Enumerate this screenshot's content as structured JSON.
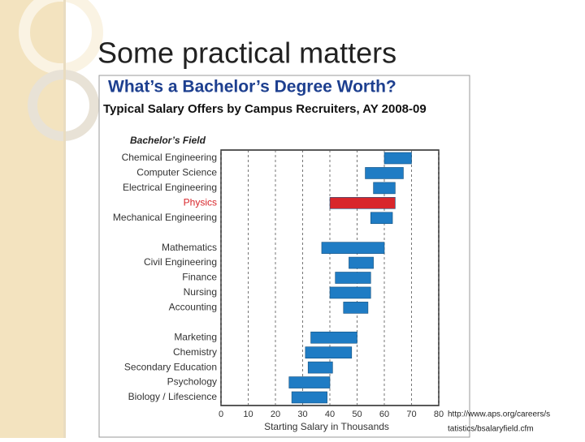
{
  "slide_title": "Some practical matters",
  "source": [
    "http://www.aps.org/careers/s",
    "tatistics/bsalaryfield.cfm"
  ],
  "chart_data": {
    "type": "range-bar",
    "title": "What’s a Bachelor’s Degree Worth?",
    "subtitle": "Typical Salary Offers by Campus Recruiters, AY 2008-09",
    "y_label": "Bachelor’s Field",
    "x_label": "Starting Salary in Thousands",
    "categories": [
      "Chemical Engineering",
      "Computer Science",
      "Electrical Engineering",
      "Physics",
      "Mechanical Engineering",
      null,
      "Mathematics",
      "Civil Engineering",
      "Finance",
      "Nursing",
      "Accounting",
      null,
      "Marketing",
      "Chemistry",
      "Secondary Education",
      "Psychology",
      "Biology / Lifescience"
    ],
    "lows": [
      60,
      53,
      56,
      40,
      55,
      null,
      37,
      47,
      42,
      40,
      45,
      null,
      33,
      31,
      32,
      25,
      26
    ],
    "highs": [
      70,
      67,
      64,
      64,
      63,
      null,
      60,
      56,
      55,
      55,
      54,
      null,
      50,
      48,
      41,
      40,
      39
    ],
    "color": "#1f7cc4",
    "colors": [
      "#1f7cc4",
      "#1f7cc4",
      "#1f7cc4",
      "#d8262b",
      "#1f7cc4",
      null,
      "#1f7cc4",
      "#1f7cc4",
      "#1f7cc4",
      "#1f7cc4",
      "#1f7cc4",
      null,
      "#1f7cc4",
      "#1f7cc4",
      "#1f7cc4",
      "#1f7cc4",
      "#1f7cc4"
    ],
    "xlim": [
      0,
      80
    ],
    "xticks": [
      0,
      10,
      20,
      30,
      40,
      50,
      60,
      70,
      80
    ],
    "grid": true
  }
}
